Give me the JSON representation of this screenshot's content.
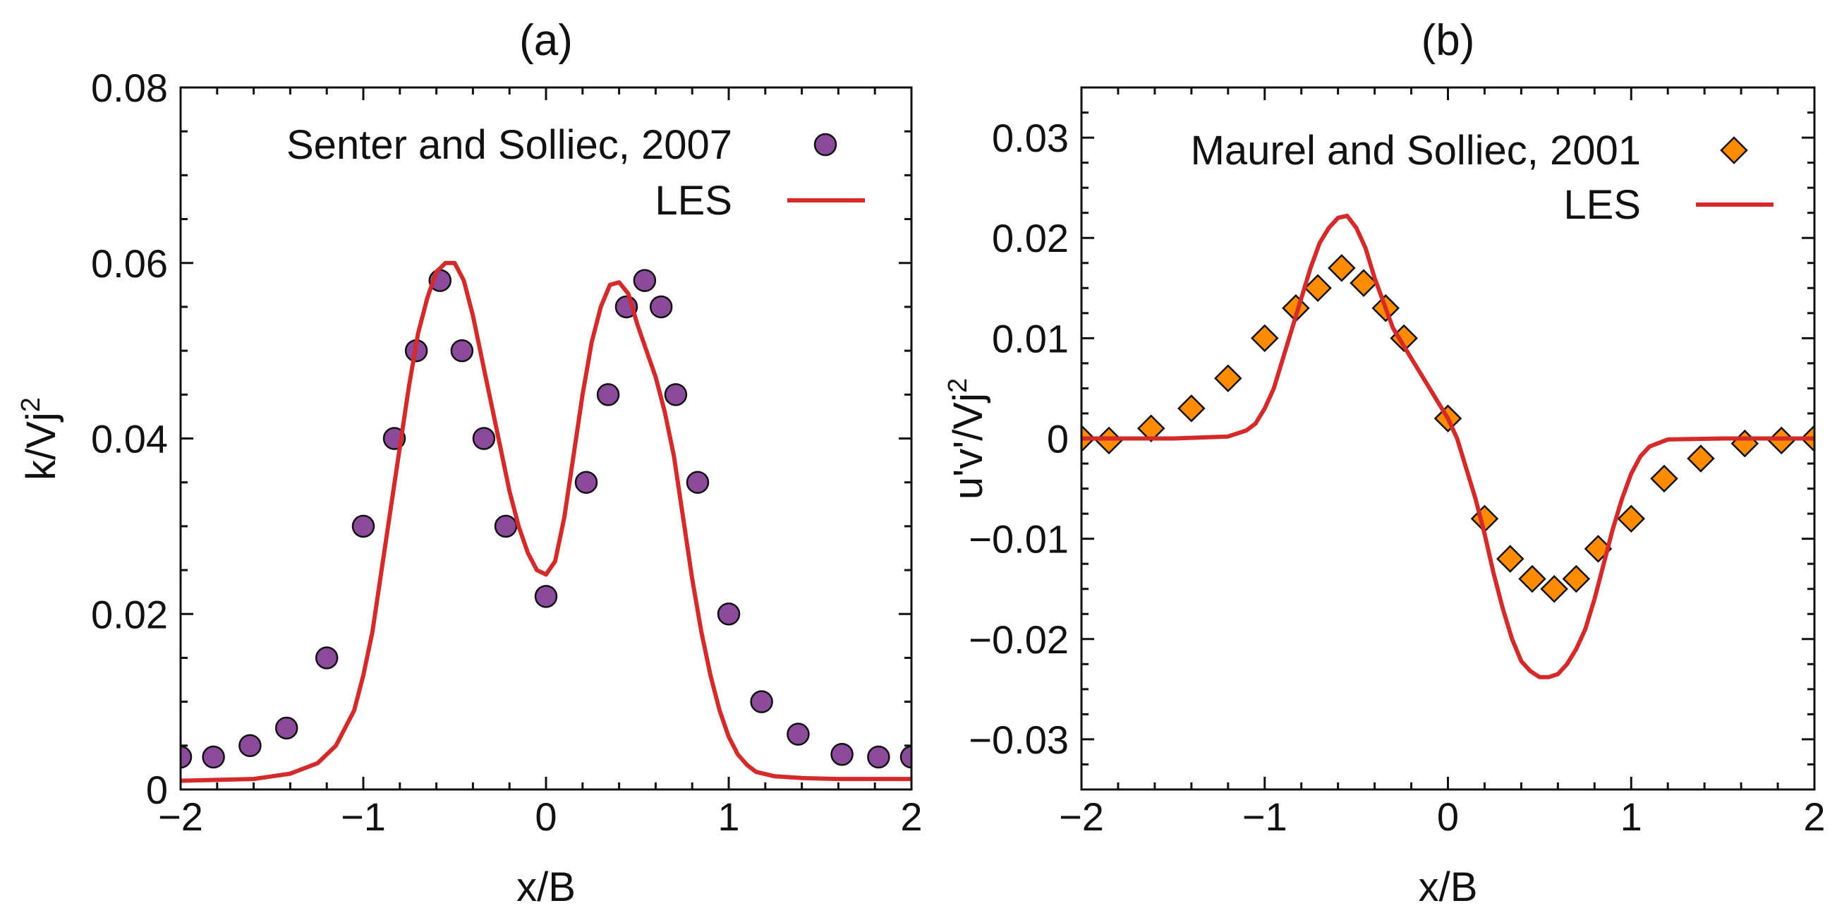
{
  "chart_data": [
    {
      "type": "line",
      "panel_title": "(a)",
      "xlabel": "x/B",
      "ylabel": "k/Vj",
      "ylabel_sup": "2",
      "xlim": [
        -2,
        2
      ],
      "ylim": [
        0,
        0.08
      ],
      "grid": false,
      "legend_position": "top-right",
      "xticks": [
        -2,
        -1,
        0,
        1,
        2
      ],
      "xtick_labels": [
        "−2",
        "−1",
        "0",
        "1",
        "2"
      ],
      "yticks": [
        0,
        0.02,
        0.04,
        0.06,
        0.08
      ],
      "ytick_labels": [
        "0",
        "0.02",
        "0.04",
        "0.06",
        "0.08"
      ],
      "series": [
        {
          "name": "Senter and Solliec, 2007",
          "kind": "scatter",
          "marker": "circle",
          "color": "#8B4A9C",
          "x": [
            -2.0,
            -1.82,
            -1.62,
            -1.42,
            -1.2,
            -1.0,
            -0.83,
            -0.71,
            -0.58,
            -0.46,
            -0.34,
            -0.22,
            0.0,
            0.22,
            0.34,
            0.44,
            0.54,
            0.63,
            0.71,
            0.83,
            1.0,
            1.18,
            1.38,
            1.62,
            1.82,
            2.0
          ],
          "y": [
            0.0037,
            0.0037,
            0.005,
            0.007,
            0.015,
            0.03,
            0.04,
            0.05,
            0.058,
            0.05,
            0.04,
            0.03,
            0.022,
            0.035,
            0.045,
            0.055,
            0.058,
            0.055,
            0.045,
            0.035,
            0.02,
            0.01,
            0.0063,
            0.004,
            0.0037,
            0.0037
          ]
        },
        {
          "name": "LES",
          "kind": "line",
          "color": "#D42A2A",
          "x": [
            -2.0,
            -1.6,
            -1.4,
            -1.25,
            -1.15,
            -1.05,
            -1.0,
            -0.95,
            -0.9,
            -0.85,
            -0.8,
            -0.75,
            -0.7,
            -0.65,
            -0.6,
            -0.55,
            -0.5,
            -0.45,
            -0.4,
            -0.35,
            -0.3,
            -0.25,
            -0.2,
            -0.15,
            -0.1,
            -0.05,
            0.0,
            0.05,
            0.1,
            0.15,
            0.2,
            0.25,
            0.3,
            0.35,
            0.4,
            0.45,
            0.5,
            0.55,
            0.6,
            0.65,
            0.7,
            0.75,
            0.8,
            0.85,
            0.9,
            0.95,
            1.0,
            1.05,
            1.1,
            1.15,
            1.25,
            1.4,
            1.6,
            2.0
          ],
          "y": [
            0.001,
            0.0012,
            0.0018,
            0.003,
            0.005,
            0.009,
            0.013,
            0.018,
            0.025,
            0.032,
            0.039,
            0.046,
            0.052,
            0.056,
            0.059,
            0.06,
            0.06,
            0.058,
            0.054,
            0.049,
            0.044,
            0.039,
            0.034,
            0.03,
            0.027,
            0.025,
            0.0245,
            0.026,
            0.031,
            0.038,
            0.045,
            0.051,
            0.055,
            0.0575,
            0.0578,
            0.0565,
            0.053,
            0.05,
            0.047,
            0.043,
            0.038,
            0.031,
            0.024,
            0.018,
            0.013,
            0.009,
            0.006,
            0.004,
            0.0028,
            0.002,
            0.0015,
            0.0013,
            0.0012,
            0.0012
          ]
        }
      ]
    },
    {
      "type": "line",
      "panel_title": "(b)",
      "xlabel": "x/B",
      "ylabel": "u'v'/Vj",
      "ylabel_sup": "2",
      "xlim": [
        -2,
        2
      ],
      "ylim": [
        -0.035,
        0.035
      ],
      "grid": false,
      "legend_position": "top-right",
      "xticks": [
        -2,
        -1,
        0,
        1,
        2
      ],
      "xtick_labels": [
        "−2",
        "−1",
        "0",
        "1",
        "2"
      ],
      "yticks": [
        -0.03,
        -0.02,
        -0.01,
        0,
        0.01,
        0.02,
        0.03
      ],
      "ytick_labels": [
        "−0.03",
        "−0.02",
        "−0.01",
        "0",
        "0.01",
        "0.02",
        "0.03"
      ],
      "series": [
        {
          "name": "Maurel and Solliec, 2001",
          "kind": "scatter",
          "marker": "diamond",
          "color": "#FF8C00",
          "x": [
            -2.0,
            -1.85,
            -1.62,
            -1.4,
            -1.2,
            -1.0,
            -0.83,
            -0.71,
            -0.58,
            -0.46,
            -0.34,
            -0.24,
            0.0,
            0.2,
            0.34,
            0.46,
            0.58,
            0.7,
            0.82,
            1.0,
            1.18,
            1.38,
            1.62,
            1.82,
            2.0
          ],
          "y": [
            0.0,
            -0.0002,
            0.001,
            0.003,
            0.006,
            0.01,
            0.013,
            0.015,
            0.017,
            0.0155,
            0.013,
            0.01,
            0.002,
            -0.008,
            -0.012,
            -0.014,
            -0.015,
            -0.014,
            -0.011,
            -0.008,
            -0.004,
            -0.002,
            -0.0005,
            -0.0002,
            0.0
          ]
        },
        {
          "name": "LES",
          "kind": "line",
          "color": "#D42A2A",
          "x": [
            -2.0,
            -1.5,
            -1.2,
            -1.1,
            -1.05,
            -1.0,
            -0.95,
            -0.9,
            -0.85,
            -0.8,
            -0.75,
            -0.7,
            -0.65,
            -0.6,
            -0.55,
            -0.5,
            -0.45,
            -0.4,
            -0.35,
            -0.3,
            -0.25,
            -0.2,
            -0.15,
            -0.1,
            -0.05,
            0.0,
            0.05,
            0.1,
            0.15,
            0.2,
            0.25,
            0.3,
            0.35,
            0.4,
            0.45,
            0.5,
            0.55,
            0.6,
            0.65,
            0.7,
            0.75,
            0.8,
            0.85,
            0.9,
            0.95,
            1.0,
            1.05,
            1.1,
            1.2,
            1.5,
            2.0
          ],
          "y": [
            0.0,
            0.0,
            0.0002,
            0.0008,
            0.0015,
            0.003,
            0.005,
            0.008,
            0.011,
            0.014,
            0.017,
            0.0195,
            0.021,
            0.022,
            0.0222,
            0.021,
            0.019,
            0.016,
            0.0135,
            0.011,
            0.0095,
            0.008,
            0.0065,
            0.005,
            0.0035,
            0.002,
            0.0,
            -0.003,
            -0.006,
            -0.0095,
            -0.0135,
            -0.017,
            -0.02,
            -0.0222,
            -0.0232,
            -0.0238,
            -0.0238,
            -0.0235,
            -0.0225,
            -0.021,
            -0.019,
            -0.016,
            -0.0125,
            -0.009,
            -0.006,
            -0.0035,
            -0.0018,
            -0.0008,
            -0.0001,
            0.0,
            0.0
          ]
        }
      ]
    }
  ]
}
